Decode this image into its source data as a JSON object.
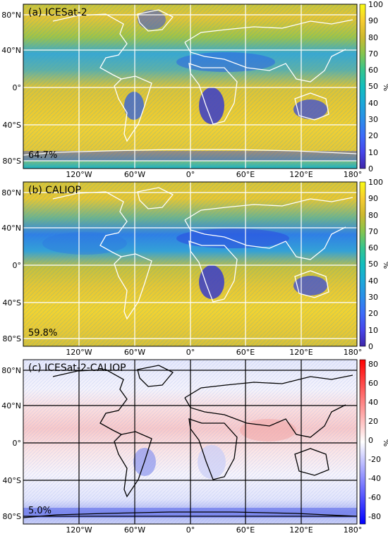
{
  "panels": [
    {
      "id": "icesat2",
      "title": "(a) ICESat-2",
      "stat": "64.7%",
      "colorbar": {
        "unit": "%",
        "min": 0,
        "max": 100,
        "ticks": [
          "100",
          "90",
          "80",
          "70",
          "60",
          "50",
          "40",
          "30",
          "20",
          "10",
          "0"
        ],
        "scheme": "parula"
      },
      "coastline_color": "#ffffff"
    },
    {
      "id": "caliop",
      "title": "(b) CALIOP",
      "stat": "59.8%",
      "colorbar": {
        "unit": "%",
        "min": 0,
        "max": 100,
        "ticks": [
          "100",
          "90",
          "80",
          "70",
          "60",
          "50",
          "40",
          "30",
          "20",
          "10",
          "0"
        ],
        "scheme": "parula"
      },
      "coastline_color": "#ffffff"
    },
    {
      "id": "difference",
      "title": "(c) ICESat-2-CALIOP",
      "stat": "5.0%",
      "colorbar": {
        "unit": "%",
        "min": -80,
        "max": 80,
        "ticks": [
          "80",
          "60",
          "40",
          "20",
          "0",
          "-20",
          "-40",
          "-60",
          "-80"
        ],
        "scheme": "bwr"
      },
      "coastline_color": "#000000"
    }
  ],
  "axes": {
    "lat_labels": [
      "80°N",
      "40°N",
      "0°",
      "40°S",
      "80°S"
    ],
    "lon_labels": [
      "120°W",
      "60°W",
      "0°",
      "60°E",
      "120°E",
      "180°"
    ]
  }
}
